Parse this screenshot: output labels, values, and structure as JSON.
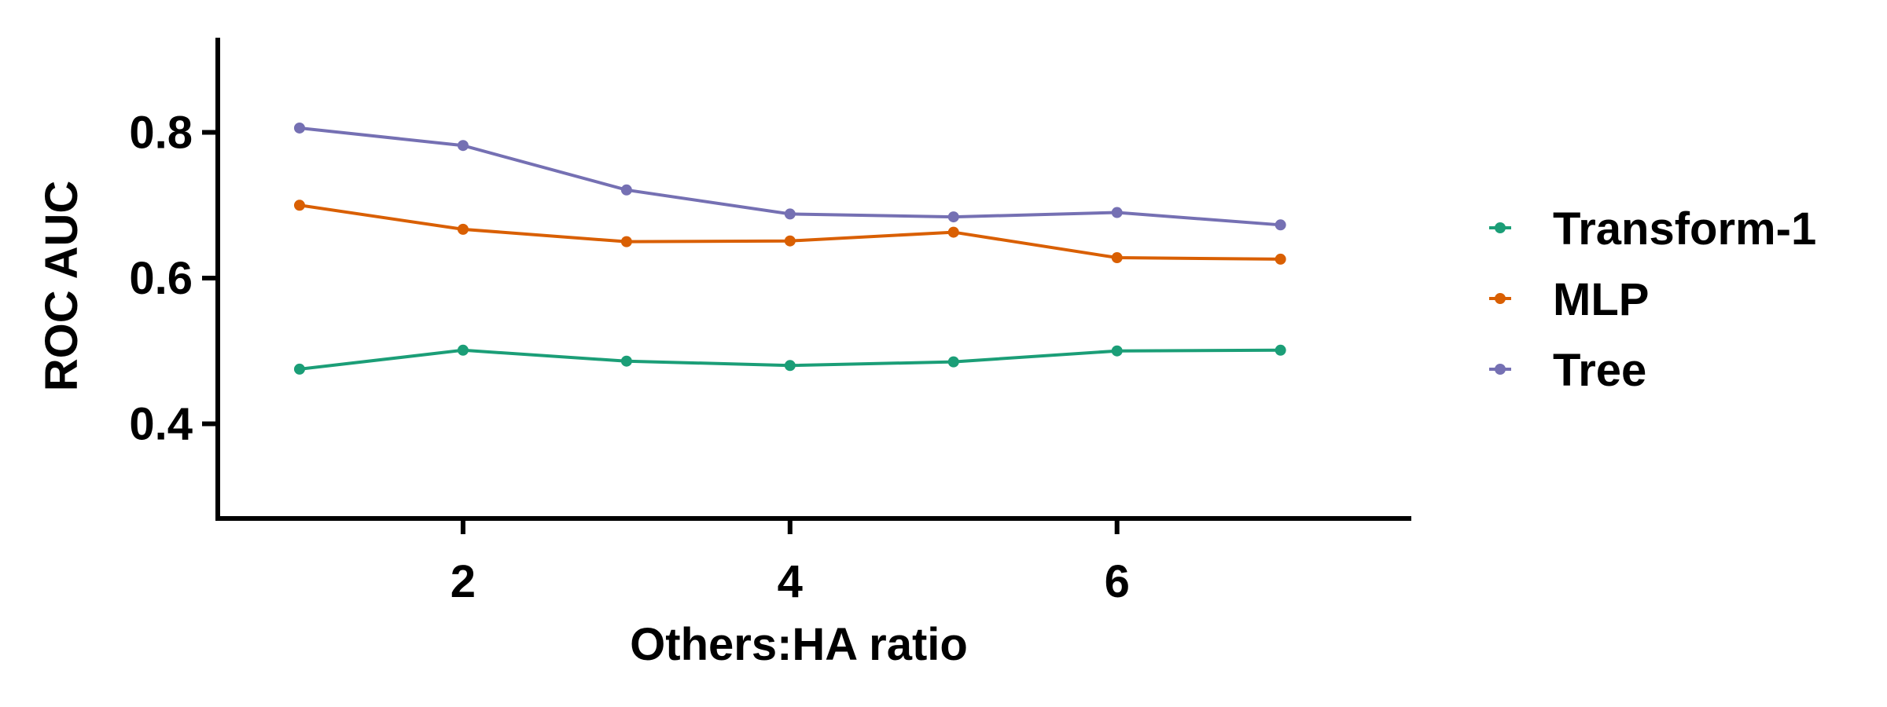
{
  "chart_data": {
    "type": "line",
    "title": "",
    "xlabel": "Others:HA ratio",
    "ylabel": "ROC AUC",
    "xlim": [
      0.5,
      7.8
    ],
    "ylim": [
      0.27,
      0.93
    ],
    "xticks": [
      2,
      4,
      6
    ],
    "yticks": [
      0.4,
      0.6,
      0.8
    ],
    "xtick_labels": [
      "2",
      "4",
      "6"
    ],
    "ytick_labels": [
      "0.4",
      "0.6",
      "0.8"
    ],
    "grid": false,
    "legend_position": "right",
    "x": [
      1,
      2,
      3,
      4,
      5,
      6,
      7
    ],
    "series": [
      {
        "name": "Transform-1",
        "color": "#1b9e77",
        "values": [
          0.475,
          0.501,
          0.486,
          0.48,
          0.485,
          0.5,
          0.501
        ]
      },
      {
        "name": "MLP",
        "color": "#d95f02",
        "values": [
          0.7,
          0.667,
          0.65,
          0.651,
          0.663,
          0.628,
          0.626
        ]
      },
      {
        "name": "Tree",
        "color": "#7570b3",
        "values": [
          0.806,
          0.782,
          0.721,
          0.688,
          0.684,
          0.69,
          0.673
        ]
      }
    ]
  }
}
